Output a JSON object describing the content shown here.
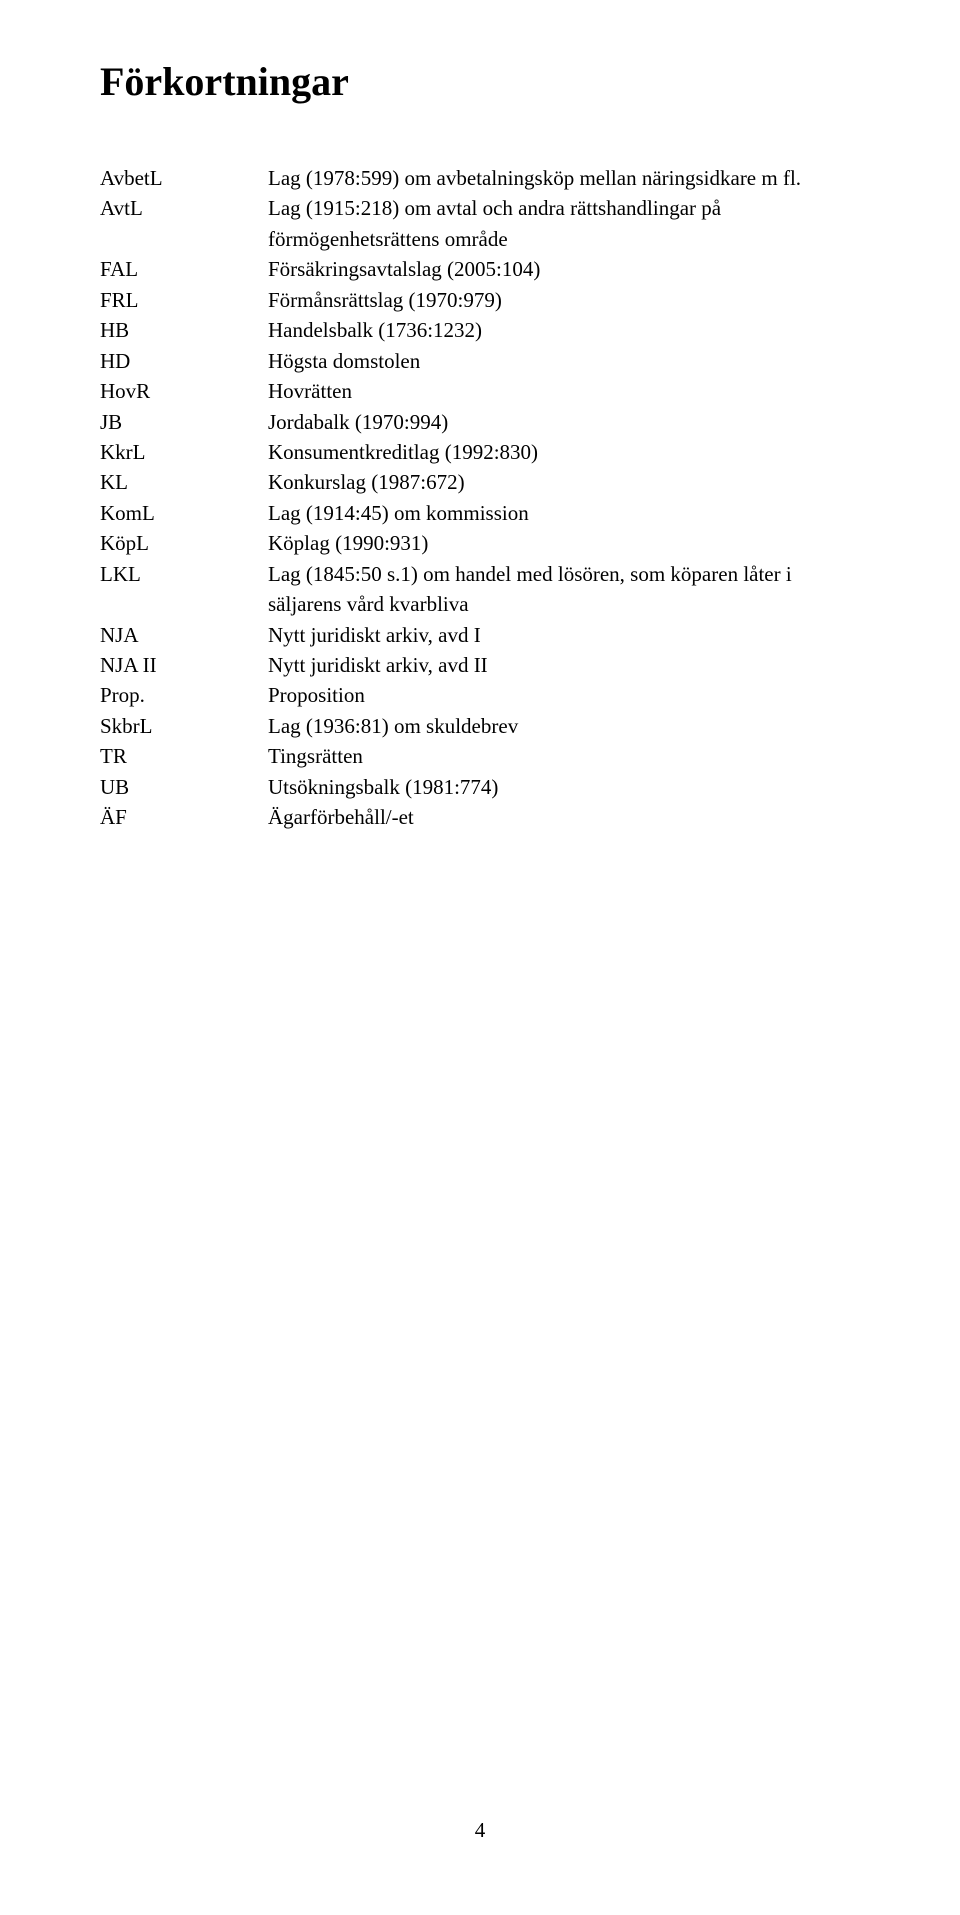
{
  "title": "Förkortningar",
  "page_number": "4",
  "entries": [
    {
      "term": "AvbetL",
      "def": "Lag (1978:599) om avbetalningsköp mellan näringsidkare m fl."
    },
    {
      "term": "AvtL",
      "def": "Lag (1915:218) om avtal och andra rättshandlingar på förmögenhetsrättens område"
    },
    {
      "term": "FAL",
      "def": "Försäkringsavtalslag (2005:104)"
    },
    {
      "term": "FRL",
      "def": "Förmånsrättslag (1970:979)"
    },
    {
      "term": "HB",
      "def": "Handelsbalk (1736:1232)"
    },
    {
      "term": "HD",
      "def": "Högsta domstolen"
    },
    {
      "term": "HovR",
      "def": "Hovrätten"
    },
    {
      "term": "JB",
      "def": "Jordabalk (1970:994)"
    },
    {
      "term": "KkrL",
      "def": "Konsumentkreditlag (1992:830)"
    },
    {
      "term": "KL",
      "def": "Konkurslag (1987:672)"
    },
    {
      "term": "KomL",
      "def": "Lag (1914:45) om kommission"
    },
    {
      "term": "KöpL",
      "def": "Köplag (1990:931)"
    },
    {
      "term": "LKL",
      "def": "Lag (1845:50 s.1) om handel med lösören, som köparen låter i säljarens vård kvarbliva"
    },
    {
      "term": "NJA",
      "def": "Nytt juridiskt arkiv, avd I"
    },
    {
      "term": "NJA II",
      "def": "Nytt juridiskt arkiv, avd II"
    },
    {
      "term": "Prop.",
      "def": "Proposition"
    },
    {
      "term": "SkbrL",
      "def": "Lag (1936:81) om skuldebrev"
    },
    {
      "term": "TR",
      "def": "Tingsrätten"
    },
    {
      "term": "UB",
      "def": "Utsökningsbalk (1981:774)"
    },
    {
      "term": "ÄF",
      "def": "Ägarförbehåll/-et"
    }
  ]
}
